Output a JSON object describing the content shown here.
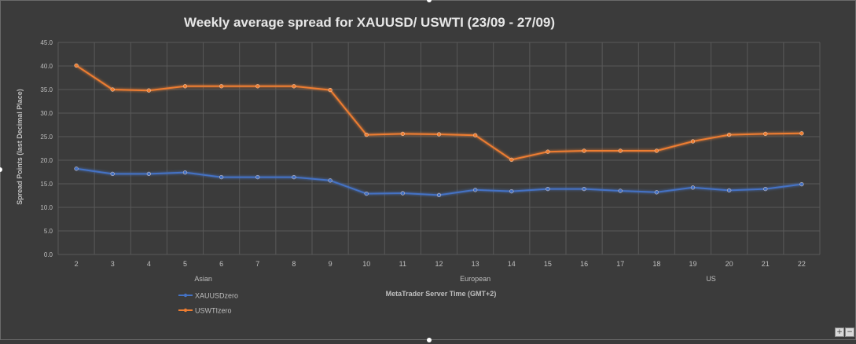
{
  "chart_data": {
    "type": "line",
    "title": "Weekly average spread for XAUUSD/ USWTI (23/09 - 27/09)",
    "xlabel": "MetaTrader Server Time (GMT+2)",
    "ylabel": "Spread Points  (last Decimal Place)",
    "ylim": [
      0,
      45
    ],
    "yticks": [
      "0.0",
      "5.0",
      "10.0",
      "15.0",
      "20.0",
      "25.0",
      "30.0",
      "35.0",
      "40.0",
      "45.0"
    ],
    "categories": [
      "2",
      "3",
      "4",
      "5",
      "6",
      "7",
      "8",
      "9",
      "10",
      "11",
      "12",
      "13",
      "14",
      "15",
      "16",
      "17",
      "18",
      "19",
      "20",
      "21",
      "22"
    ],
    "sessions": [
      "Asian",
      "European",
      "US"
    ],
    "grid": true,
    "legend_position": "bottom-left",
    "series": [
      {
        "name": "XAUUSDzero",
        "color": "#4472c4",
        "values": [
          18.2,
          17.1,
          17.1,
          17.4,
          16.4,
          16.4,
          16.4,
          15.7,
          12.9,
          13.0,
          12.6,
          13.7,
          13.4,
          13.9,
          13.9,
          13.5,
          13.2,
          14.2,
          13.6,
          13.9,
          14.9
        ]
      },
      {
        "name": "USWTIzero",
        "color": "#ed7d31",
        "values": [
          40.1,
          35.0,
          34.8,
          35.7,
          35.7,
          35.7,
          35.7,
          34.9,
          25.4,
          25.6,
          25.5,
          25.3,
          20.1,
          21.8,
          22.0,
          22.0,
          22.0,
          24.0,
          25.4,
          25.6,
          25.7
        ]
      }
    ]
  },
  "ui": {
    "zoom_in": "+",
    "zoom_out": "−"
  }
}
